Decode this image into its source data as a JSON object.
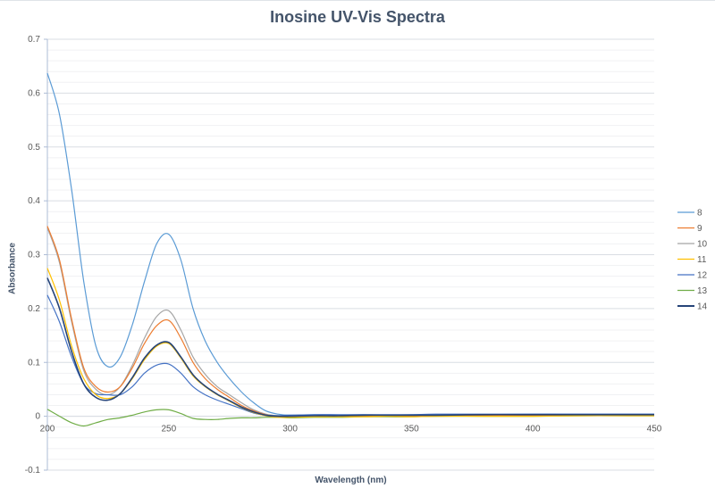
{
  "chart_data": {
    "type": "line",
    "title": "Inosine UV-Vis Spectra",
    "xlabel": "Wavelength (nm)",
    "ylabel": "Absorbance",
    "xlim": [
      200,
      450
    ],
    "ylim": [
      -0.1,
      0.7
    ],
    "x_ticks": [
      "200",
      "250",
      "300",
      "350",
      "400",
      "450"
    ],
    "y_ticks": [
      "-0.1",
      "0",
      "0.1",
      "0.2",
      "0.3",
      "0.4",
      "0.5",
      "0.6",
      "0.7"
    ],
    "grid": "horizontal major and minor",
    "legend_position": "right",
    "x": [
      200,
      205,
      210,
      215,
      220,
      225,
      230,
      235,
      240,
      245,
      250,
      255,
      260,
      265,
      270,
      275,
      280,
      285,
      290,
      295,
      300,
      310,
      320,
      330,
      340,
      350,
      360,
      380,
      400,
      420,
      440,
      450
    ],
    "series": [
      {
        "name": "8",
        "color": "#5b9bd5",
        "values": [
          0.637,
          0.56,
          0.42,
          0.25,
          0.13,
          0.092,
          0.11,
          0.17,
          0.25,
          0.32,
          0.338,
          0.29,
          0.2,
          0.14,
          0.1,
          0.07,
          0.045,
          0.025,
          0.01,
          0.004,
          0.002,
          0.003,
          0.002,
          0.003,
          0.002,
          0.003,
          0.003,
          0.003,
          0.004,
          0.004,
          0.004,
          0.004
        ]
      },
      {
        "name": "9",
        "color": "#ed7d31",
        "values": [
          0.353,
          0.29,
          0.18,
          0.09,
          0.055,
          0.045,
          0.055,
          0.09,
          0.135,
          0.168,
          0.178,
          0.145,
          0.1,
          0.07,
          0.05,
          0.035,
          0.02,
          0.01,
          0.003,
          0.0,
          0.0,
          0.001,
          0.0,
          0.001,
          0.001,
          0.001,
          0.001,
          0.002,
          0.002,
          0.002,
          0.002,
          0.002
        ]
      },
      {
        "name": "10",
        "color": "#a5a5a5",
        "values": [
          0.35,
          0.285,
          0.175,
          0.085,
          0.05,
          0.04,
          0.055,
          0.095,
          0.145,
          0.185,
          0.196,
          0.16,
          0.11,
          0.078,
          0.055,
          0.04,
          0.025,
          0.012,
          0.004,
          0.001,
          0.001,
          0.001,
          0.001,
          0.001,
          0.001,
          0.001,
          0.001,
          0.002,
          0.002,
          0.002,
          0.002,
          0.002
        ]
      },
      {
        "name": "11",
        "color": "#ffc000",
        "values": [
          0.275,
          0.215,
          0.13,
          0.07,
          0.04,
          0.033,
          0.042,
          0.07,
          0.105,
          0.13,
          0.135,
          0.108,
          0.075,
          0.055,
          0.04,
          0.028,
          0.016,
          0.007,
          0.001,
          -0.002,
          -0.002,
          -0.001,
          -0.001,
          -0.001,
          0.0,
          -0.001,
          0.0,
          0.0,
          0.0,
          0.001,
          0.001,
          0.001
        ]
      },
      {
        "name": "12",
        "color": "#4472c4",
        "values": [
          0.225,
          0.175,
          0.11,
          0.06,
          0.042,
          0.04,
          0.04,
          0.055,
          0.08,
          0.095,
          0.097,
          0.08,
          0.055,
          0.04,
          0.03,
          0.022,
          0.014,
          0.006,
          0.002,
          0.001,
          0.002,
          0.003,
          0.003,
          0.003,
          0.003,
          0.003,
          0.004,
          0.004,
          0.004,
          0.004,
          0.004,
          0.004
        ]
      },
      {
        "name": "13",
        "color": "#70ad47",
        "values": [
          0.013,
          0.0,
          -0.012,
          -0.018,
          -0.012,
          -0.006,
          -0.003,
          0.002,
          0.008,
          0.012,
          0.012,
          0.005,
          -0.004,
          -0.006,
          -0.006,
          -0.004,
          -0.003,
          -0.003,
          -0.002,
          -0.002,
          -0.003,
          -0.002,
          -0.002,
          -0.001,
          -0.001,
          -0.001,
          0.0,
          0.0,
          0.0,
          0.001,
          0.001,
          0.001
        ]
      },
      {
        "name": "14",
        "color": "#264478",
        "values": [
          0.257,
          0.2,
          0.12,
          0.06,
          0.035,
          0.03,
          0.042,
          0.072,
          0.108,
          0.132,
          0.137,
          0.11,
          0.077,
          0.056,
          0.041,
          0.029,
          0.017,
          0.008,
          0.002,
          0.0,
          0.0,
          0.001,
          0.001,
          0.002,
          0.002,
          0.002,
          0.002,
          0.003,
          0.003,
          0.003,
          0.003,
          0.003
        ]
      }
    ]
  }
}
